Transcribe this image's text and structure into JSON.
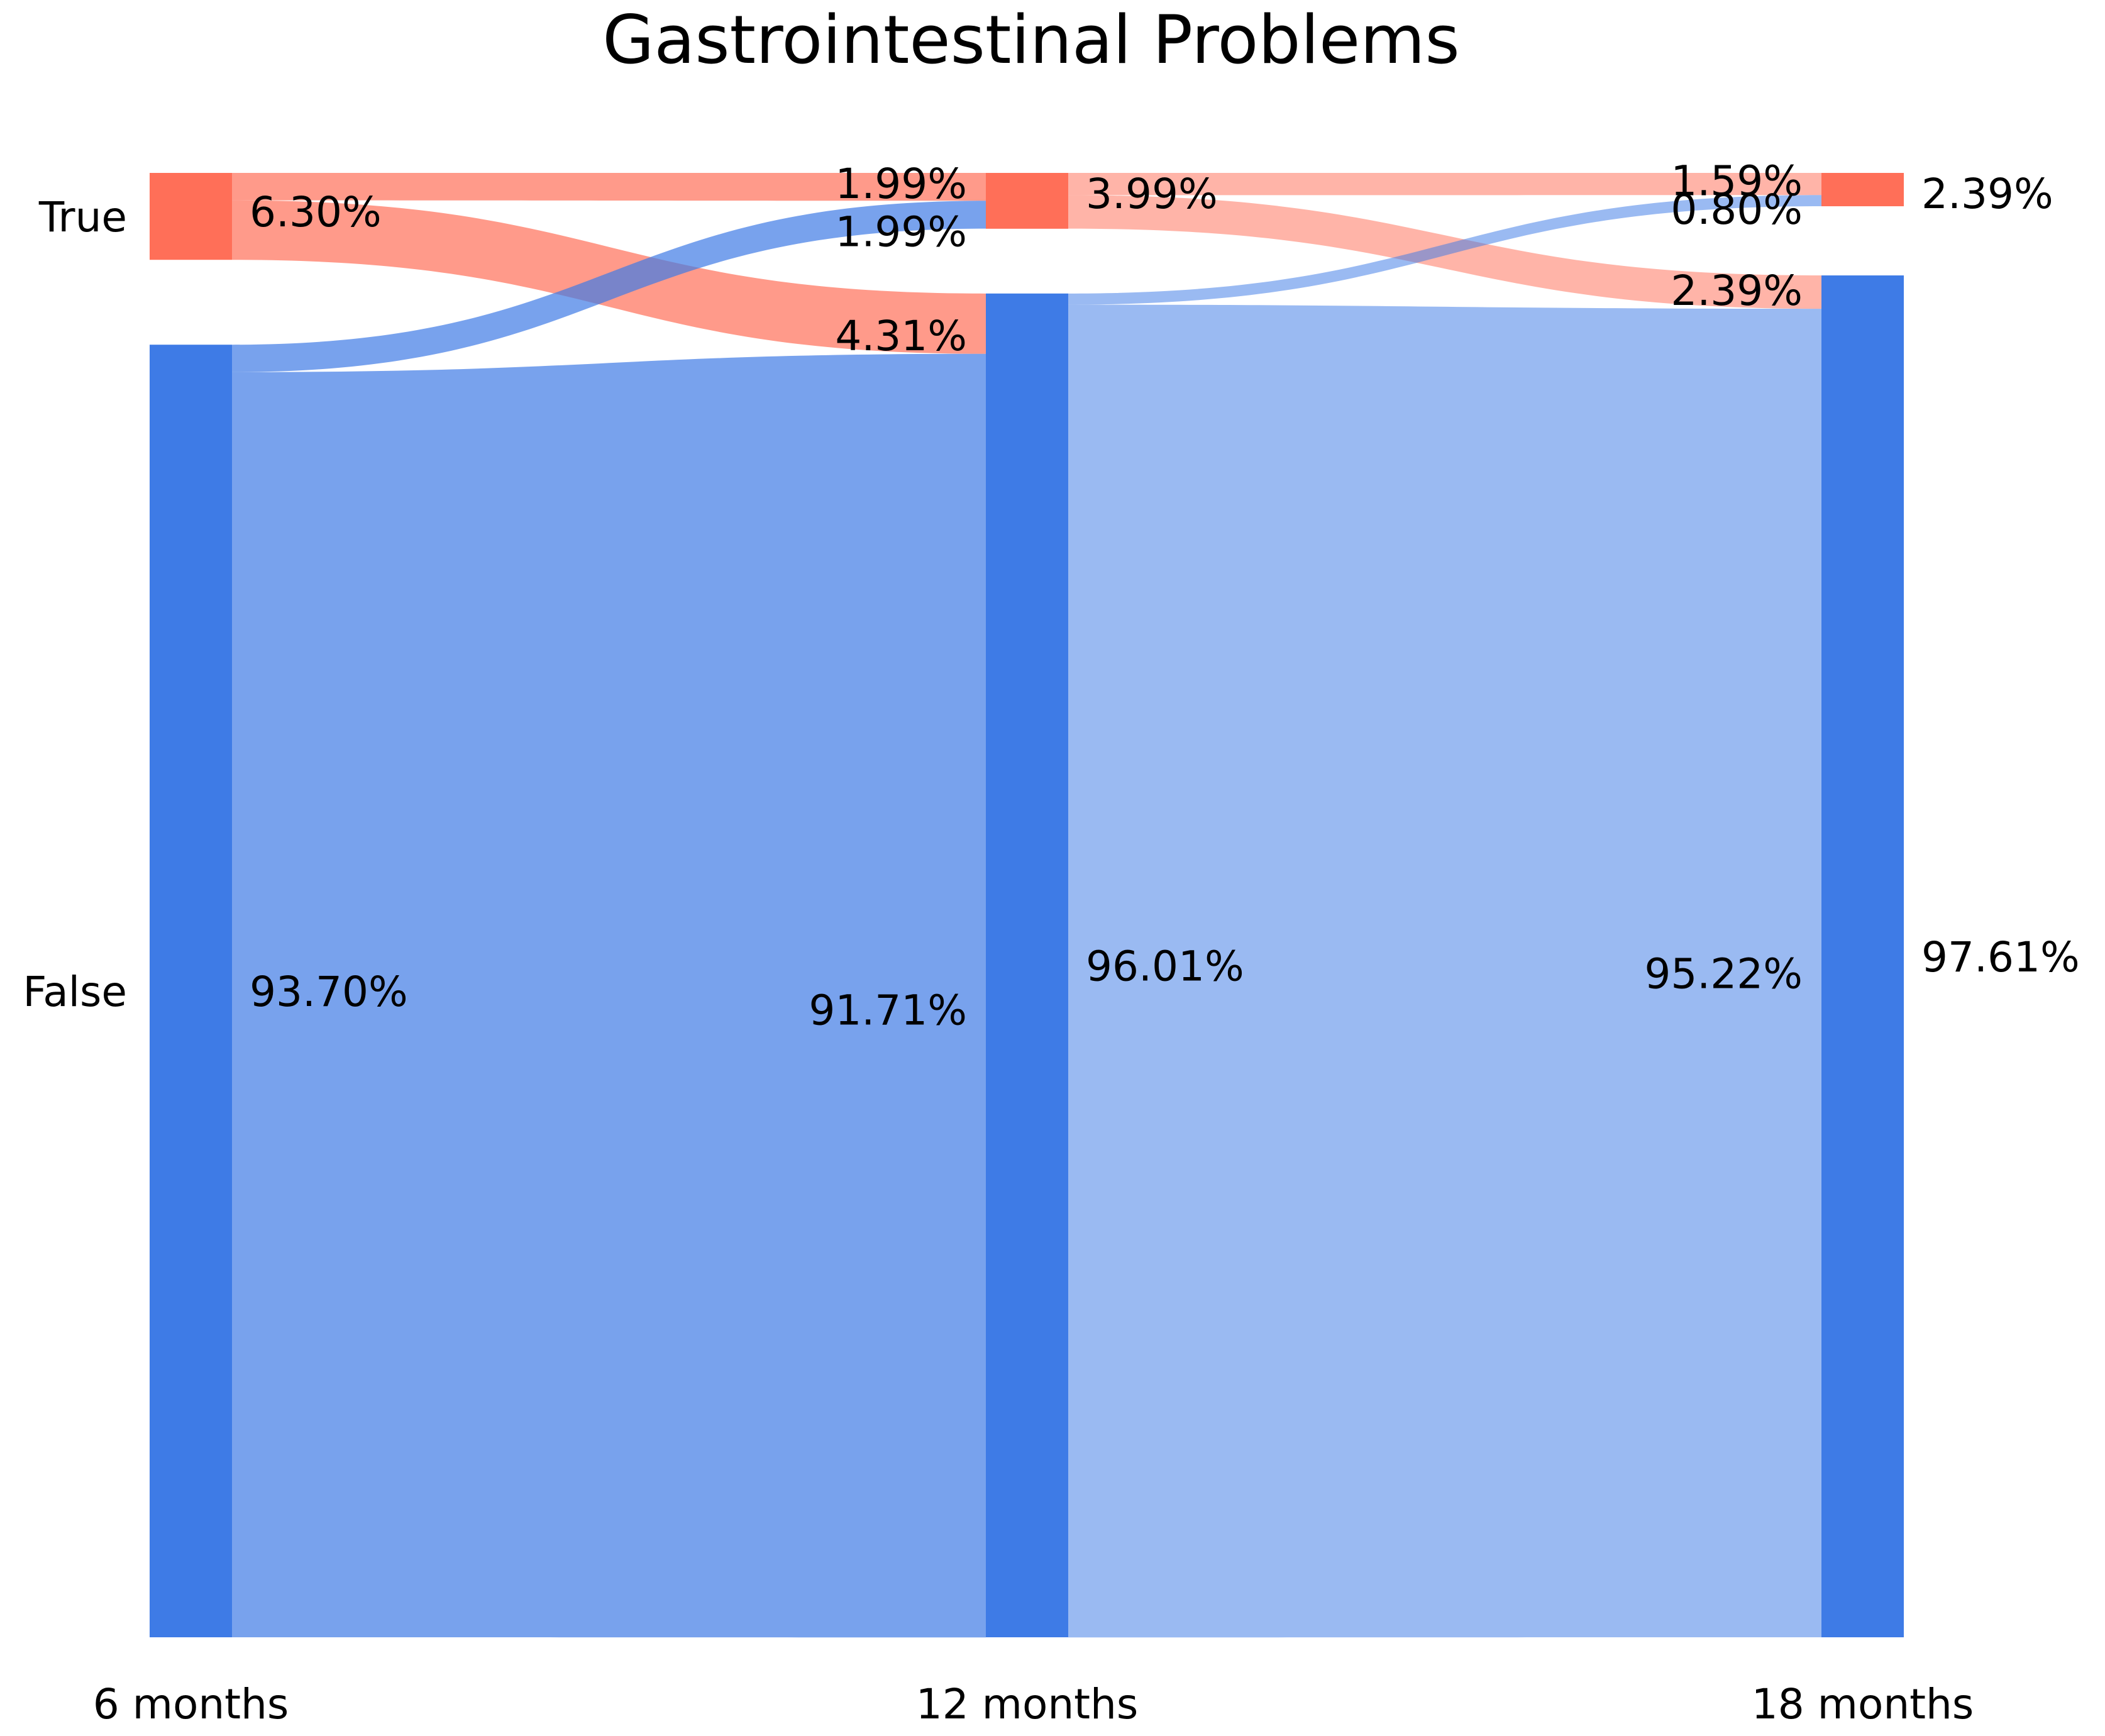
{
  "chart_data": {
    "type": "sankey",
    "title": "Gastrointestinal Problems",
    "stages": [
      "6 months",
      "12 months",
      "18 months"
    ],
    "categories": [
      "True",
      "False"
    ],
    "category_colors": {
      "True": "#ff6f58",
      "False": "#3e7be6"
    },
    "nodes": [
      {
        "stage": 0,
        "category": "True",
        "value": 6.3
      },
      {
        "stage": 0,
        "category": "False",
        "value": 93.7
      },
      {
        "stage": 1,
        "category": "True",
        "value": 3.99
      },
      {
        "stage": 1,
        "category": "False",
        "value": 96.01
      },
      {
        "stage": 2,
        "category": "True",
        "value": 2.39
      },
      {
        "stage": 2,
        "category": "False",
        "value": 97.61
      }
    ],
    "node_labels": [
      {
        "stage": 0,
        "category": "True",
        "label": "6.30%"
      },
      {
        "stage": 0,
        "category": "False",
        "label": "93.70%"
      },
      {
        "stage": 1,
        "category": "True",
        "label": "3.99%"
      },
      {
        "stage": 1,
        "category": "False",
        "label": "96.01%"
      },
      {
        "stage": 2,
        "category": "True",
        "label": "2.39%"
      },
      {
        "stage": 2,
        "category": "False",
        "label": "97.61%"
      }
    ],
    "flows": [
      {
        "from_stage": 0,
        "from": "True",
        "to": "True",
        "value": 1.99,
        "label": "1.99%"
      },
      {
        "from_stage": 0,
        "from": "True",
        "to": "False",
        "value": 4.31,
        "label": "4.31%"
      },
      {
        "from_stage": 0,
        "from": "False",
        "to": "True",
        "value": 1.99,
        "label": "1.99%"
      },
      {
        "from_stage": 0,
        "from": "False",
        "to": "False",
        "value": 91.71,
        "label": "91.71%"
      },
      {
        "from_stage": 1,
        "from": "True",
        "to": "True",
        "value": 1.59,
        "label": "1.59%"
      },
      {
        "from_stage": 1,
        "from": "True",
        "to": "False",
        "value": 2.39,
        "label": "2.39%"
      },
      {
        "from_stage": 1,
        "from": "False",
        "to": "True",
        "value": 0.8,
        "label": "0.80%"
      },
      {
        "from_stage": 1,
        "from": "False",
        "to": "False",
        "value": 95.22,
        "label": "95.22%"
      }
    ]
  }
}
